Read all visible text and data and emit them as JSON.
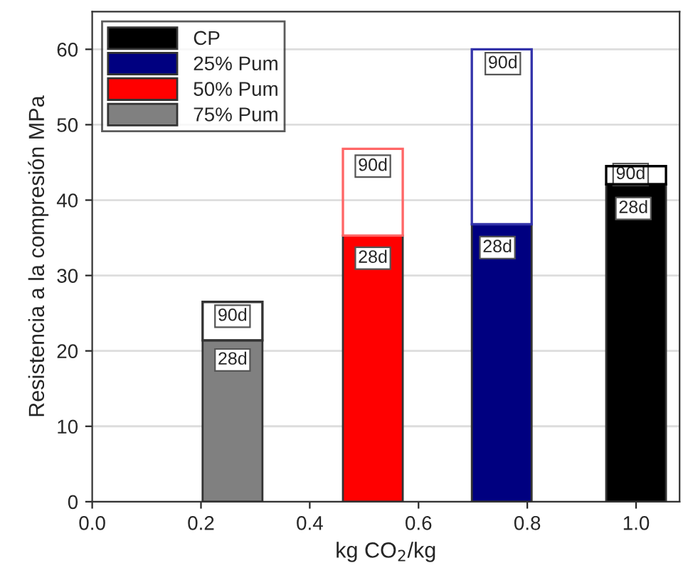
{
  "chart_data": {
    "type": "bar",
    "xlabel": "kg CO$_{2}$/kg",
    "ylabel": "Resistencia a la compresión MPa",
    "x": [
      0.258,
      0.516,
      0.753,
      1.0
    ],
    "stacked": true,
    "series": [
      {
        "name": "CP",
        "color": "#000000",
        "values": [
          null,
          null,
          null,
          42.1
        ]
      },
      {
        "name": "25% Pum",
        "color": "#000080",
        "values": [
          null,
          null,
          36.8,
          null
        ]
      },
      {
        "name": "50% Pum",
        "color": "#ff0000",
        "values": [
          null,
          35.3,
          null,
          null
        ]
      },
      {
        "name": "75% Pum",
        "color": "#808080",
        "values": [
          21.4,
          null,
          null,
          null
        ]
      },
      {
        "color": "#000000",
        "values": [
          null,
          null,
          null,
          2.4
        ]
      },
      {
        "color": "#3333aa",
        "values": [
          null,
          null,
          23.2,
          null
        ]
      },
      {
        "color": "#ff6666",
        "values": [
          null,
          11.5,
          null,
          null
        ]
      },
      {
        "color": "#333333",
        "values": [
          5.1,
          null,
          null,
          null
        ]
      }
    ],
    "annotations": [
      {
        "text": "28d",
        "x": 0.258,
        "y": 18.8
      },
      {
        "text": "90d",
        "x": 0.258,
        "y": 24.6
      },
      {
        "text": "28d",
        "x": 0.516,
        "y": 32.3
      },
      {
        "text": "90d",
        "x": 0.516,
        "y": 44.5
      },
      {
        "text": "28d",
        "x": 0.745,
        "y": 33.7
      },
      {
        "text": "90d",
        "x": 0.755,
        "y": 58.1
      },
      {
        "text": "28d",
        "x": 0.995,
        "y": 38.9
      },
      {
        "text": "90d",
        "x": 0.99,
        "y": 43.4
      }
    ],
    "xlim": [
      0.0,
      1.08
    ],
    "xticks": [
      {
        "value": 0,
        "label": "0.0"
      },
      0.2,
      0.4,
      0.6,
      0.8,
      {
        "value": 1,
        "label": "1.0"
      }
    ],
    "ylim": [
      0,
      65
    ],
    "yticks": [
      0,
      10,
      20,
      30,
      40,
      50,
      60
    ],
    "grid": "y",
    "legend": "top left"
  }
}
